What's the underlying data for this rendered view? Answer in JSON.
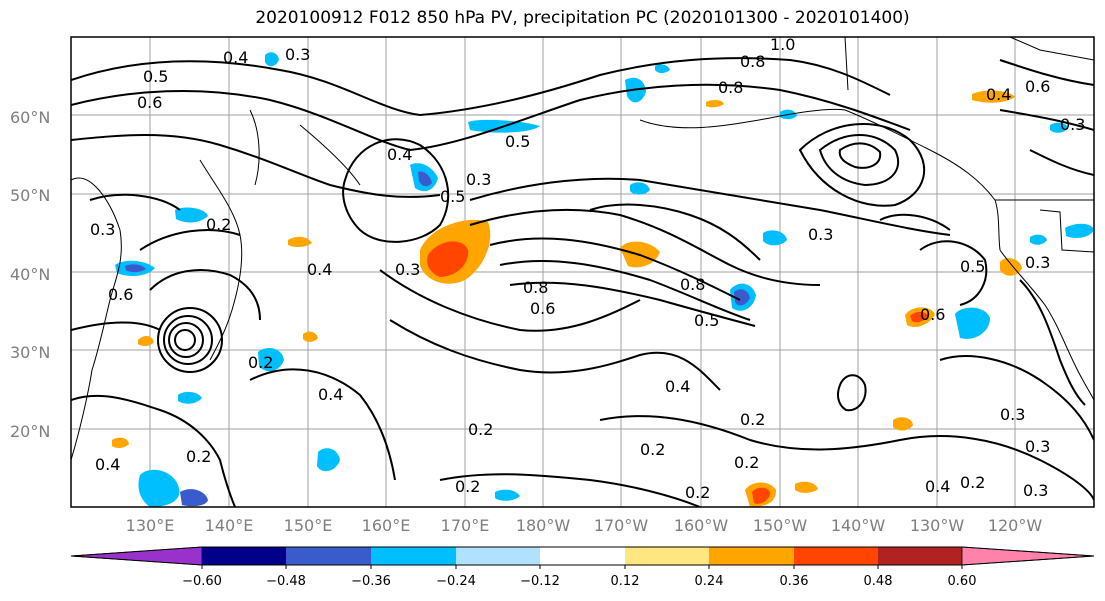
{
  "title": "2020100912 F012 850 hPa PV, precipitation PC (2020101300 - 2020101400)",
  "map": {
    "lat_ticks": [
      "60°N",
      "50°N",
      "40°N",
      "30°N",
      "20°N"
    ],
    "lon_ticks": [
      "130°E",
      "140°E",
      "150°E",
      "160°E",
      "170°E",
      "180°W",
      "170°W",
      "160°W",
      "150°W",
      "140°W",
      "130°W",
      "120°W"
    ],
    "contour_labels": [
      "0.3",
      "0.4",
      "0.5",
      "0.6",
      "0.8",
      "1.0",
      "0.8",
      "0.6",
      "0.4",
      "0.3",
      "0.5",
      "0.4",
      "0.3",
      "0.5",
      "0.2",
      "0.3",
      "0.4",
      "0.3",
      "0.6",
      "0.8",
      "0.6",
      "0.8",
      "0.5",
      "0.3",
      "0.5",
      "0.6",
      "0.2",
      "0.4",
      "0.2",
      "0.4",
      "0.2",
      "0.2",
      "0.2",
      "0.2",
      "0.4",
      "0.2",
      "0.2",
      "0.3",
      "0.3",
      "0.2",
      "0.3",
      "0.4",
      "0.3"
    ]
  },
  "colorbar": {
    "ticks": [
      "−0.60",
      "−0.48",
      "−0.36",
      "−0.24",
      "−0.12",
      "0.12",
      "0.24",
      "0.36",
      "0.48",
      "0.60"
    ],
    "colors": [
      "#9932cc",
      "#00008b",
      "#3a5bcc",
      "#00bfff",
      "#b0e2ff",
      "#ffffff",
      "#ffe680",
      "#ffa500",
      "#ff4500",
      "#b22222",
      "#ff82ab"
    ]
  }
}
